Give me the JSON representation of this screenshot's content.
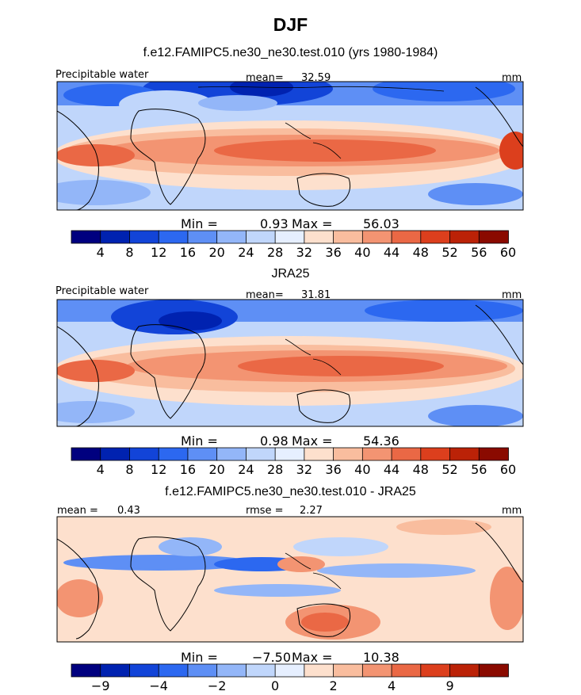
{
  "title": "DJF",
  "chart_data": [
    {
      "type": "heatmap",
      "title": "f.e12.FAMIPC5.ne30_ne30.test.010 (yrs 1980-1984)",
      "variable": "Precipitable water",
      "units": "mm",
      "mean_label": "mean=",
      "mean": "32.59",
      "min_label": "Min =",
      "min": "0.93",
      "max_label": "Max =",
      "max": "56.03",
      "colorbar_ticks": [
        "4",
        "8",
        "12",
        "16",
        "20",
        "24",
        "28",
        "32",
        "36",
        "40",
        "44",
        "48",
        "52",
        "56",
        "60"
      ]
    },
    {
      "type": "heatmap",
      "title": "JRA25",
      "variable": "Precipitable water",
      "units": "mm",
      "mean_label": "mean=",
      "mean": "31.81",
      "min_label": "Min =",
      "min": "0.98",
      "max_label": "Max =",
      "max": "54.36",
      "colorbar_ticks": [
        "4",
        "8",
        "12",
        "16",
        "20",
        "24",
        "28",
        "32",
        "36",
        "40",
        "44",
        "48",
        "52",
        "56",
        "60"
      ]
    },
    {
      "type": "heatmap",
      "title": "f.e12.FAMIPC5.ne30_ne30.test.010 - JRA25",
      "units": "mm",
      "mean_label": "mean =",
      "mean": "0.43",
      "rmse_label": "rmse =",
      "rmse": "2.27",
      "min_label": "Min =",
      "min": "−7.50",
      "max_label": "Max =",
      "max": "10.38",
      "colorbar_ticks": [
        "−9",
        "−4",
        "−2",
        "0",
        "2",
        "4",
        "9"
      ]
    }
  ],
  "colors": {
    "colorbar": [
      "#00007f",
      "#0022b0",
      "#1244d8",
      "#2c68f0",
      "#5e8ff5",
      "#93b6f8",
      "#c0d6fb",
      "#e6efff",
      "#fde0cd",
      "#f9bd9e",
      "#f39472",
      "#ea6845",
      "#dc3f1d",
      "#bb2207",
      "#8a0a00"
    ],
    "diff_colorbar": [
      "#00007f",
      "#0022b0",
      "#1244d8",
      "#2c68f0",
      "#5e8ff5",
      "#93b6f8",
      "#c0d6fb",
      "#e6efff",
      "#fde0cd",
      "#f9bd9e",
      "#f39472",
      "#ea6845",
      "#dc3f1d",
      "#bb2207",
      "#8a0a00"
    ]
  }
}
